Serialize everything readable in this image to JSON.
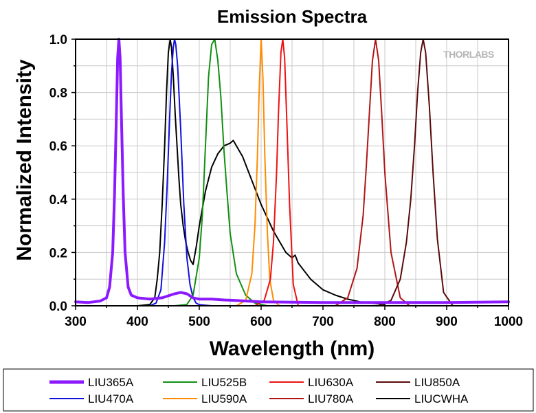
{
  "chart_data": {
    "type": "line",
    "title": "Emission Spectra",
    "xlabel": "Wavelength (nm)",
    "ylabel": "Normalized Intensity",
    "xlim": [
      300,
      1000
    ],
    "ylim": [
      0,
      1.0
    ],
    "x_ticks": [
      300,
      400,
      500,
      600,
      700,
      800,
      900,
      1000
    ],
    "y_ticks": [
      0.0,
      0.2,
      0.4,
      0.6,
      0.8,
      1.0
    ],
    "y_tick_labels": [
      "0.0",
      "0.2",
      "0.4",
      "0.6",
      "0.8",
      "1.0"
    ],
    "grid": true,
    "legend_position": "bottom",
    "watermark": "THORLABS",
    "series": [
      {
        "name": "LIU365A",
        "color": "#8c1aff",
        "width": 4,
        "x": [
          300,
          320,
          340,
          350,
          355,
          360,
          363,
          366,
          368,
          370,
          372,
          374,
          377,
          380,
          385,
          390,
          400,
          420,
          440,
          460,
          470,
          480,
          490,
          500,
          520,
          540,
          560,
          600,
          700,
          800,
          900,
          1000
        ],
        "y": [
          0.015,
          0.012,
          0.018,
          0.03,
          0.07,
          0.2,
          0.42,
          0.72,
          0.93,
          1.0,
          0.93,
          0.72,
          0.42,
          0.2,
          0.07,
          0.04,
          0.03,
          0.025,
          0.03,
          0.045,
          0.05,
          0.045,
          0.03,
          0.025,
          0.025,
          0.022,
          0.02,
          0.015,
          0.012,
          0.012,
          0.012,
          0.015
        ]
      },
      {
        "name": "LIU470A",
        "color": "#1010e0",
        "width": 2,
        "x": [
          420,
          430,
          438,
          444,
          448,
          452,
          455,
          458,
          460,
          462,
          465,
          470,
          475,
          480,
          485,
          490,
          495,
          500,
          520
        ],
        "y": [
          0,
          0.01,
          0.06,
          0.24,
          0.45,
          0.7,
          0.87,
          0.97,
          1.0,
          0.98,
          0.9,
          0.66,
          0.38,
          0.18,
          0.08,
          0.03,
          0.01,
          0.004,
          0
        ]
      },
      {
        "name": "LIU525B",
        "color": "#109010",
        "width": 2,
        "x": [
          460,
          480,
          490,
          500,
          505,
          510,
          515,
          520,
          525,
          530,
          535,
          540,
          545,
          550,
          560,
          575,
          590,
          610
        ],
        "y": [
          0,
          0.005,
          0.04,
          0.18,
          0.34,
          0.6,
          0.86,
          0.98,
          1.0,
          0.92,
          0.78,
          0.58,
          0.42,
          0.27,
          0.12,
          0.04,
          0.01,
          0
        ]
      },
      {
        "name": "LIU590A",
        "color": "#ff8c00",
        "width": 2,
        "x": [
          560,
          575,
          585,
          590,
          594,
          597,
          600,
          603,
          606,
          610,
          614,
          620,
          630
        ],
        "y": [
          0,
          0.02,
          0.12,
          0.3,
          0.56,
          0.82,
          1.0,
          0.85,
          0.56,
          0.28,
          0.1,
          0.02,
          0
        ]
      },
      {
        "name": "LIU630A",
        "color": "#ee1111",
        "width": 2,
        "x": [
          590,
          605,
          615,
          620,
          625,
          628,
          632,
          635,
          638,
          642,
          646,
          652,
          660
        ],
        "y": [
          0,
          0.02,
          0.1,
          0.24,
          0.5,
          0.72,
          0.95,
          1.0,
          0.93,
          0.66,
          0.38,
          0.08,
          0
        ]
      },
      {
        "name": "LIU780A",
        "color": "#b01515",
        "width": 2,
        "x": [
          720,
          740,
          755,
          765,
          770,
          775,
          780,
          785,
          790,
          795,
          800,
          810,
          825,
          840
        ],
        "y": [
          0,
          0.03,
          0.14,
          0.34,
          0.52,
          0.72,
          0.92,
          1.0,
          0.92,
          0.72,
          0.5,
          0.2,
          0.03,
          0
        ]
      },
      {
        "name": "LIU850A",
        "color": "#5a0a0a",
        "width": 2,
        "x": [
          790,
          810,
          825,
          835,
          842,
          848,
          853,
          858,
          862,
          866,
          872,
          878,
          885,
          895,
          910
        ],
        "y": [
          0,
          0.02,
          0.1,
          0.24,
          0.4,
          0.6,
          0.8,
          0.95,
          1.0,
          0.95,
          0.75,
          0.5,
          0.25,
          0.05,
          0
        ]
      },
      {
        "name": "LIUCWHA",
        "color": "#000000",
        "width": 2,
        "x": [
          400,
          420,
          428,
          432,
          436,
          440,
          444,
          447,
          450,
          453,
          455,
          458,
          461,
          464,
          467,
          470,
          474,
          478,
          482,
          486,
          490,
          495,
          500,
          510,
          520,
          530,
          540,
          550,
          555,
          560,
          570,
          580,
          590,
          600,
          620,
          640,
          650,
          655,
          660,
          680,
          700,
          720,
          740,
          760,
          780,
          800
        ],
        "y": [
          0,
          0.005,
          0.03,
          0.1,
          0.2,
          0.38,
          0.6,
          0.8,
          0.95,
          1.0,
          0.97,
          0.86,
          0.72,
          0.6,
          0.48,
          0.38,
          0.3,
          0.24,
          0.2,
          0.17,
          0.155,
          0.22,
          0.3,
          0.43,
          0.52,
          0.57,
          0.6,
          0.61,
          0.62,
          0.6,
          0.56,
          0.5,
          0.44,
          0.38,
          0.28,
          0.2,
          0.18,
          0.19,
          0.16,
          0.1,
          0.06,
          0.04,
          0.025,
          0.015,
          0.01,
          0.005
        ]
      }
    ]
  }
}
